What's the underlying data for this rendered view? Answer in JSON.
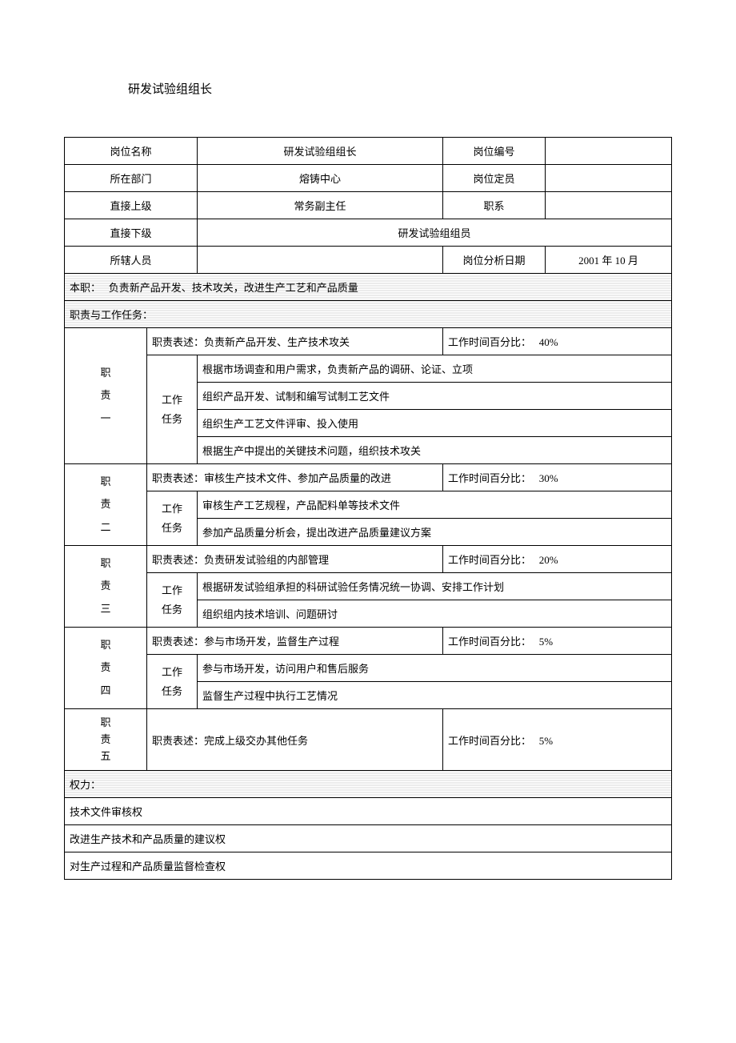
{
  "title": "研发试验组组长",
  "header": {
    "labels": {
      "position_name": "岗位名称",
      "position_code": "岗位编号",
      "department": "所在部门",
      "headcount": "岗位定员",
      "supervisor": "直接上级",
      "job_family": "职系",
      "subordinate": "直接下级",
      "staff": "所辖人员",
      "analysis_date": "岗位分析日期"
    },
    "values": {
      "position_name": "研发试验组组长",
      "position_code": "",
      "department": "熔铸中心",
      "headcount": "",
      "supervisor": "常务副主任",
      "job_family": "",
      "subordinate": "研发试验组组员",
      "staff": "",
      "analysis_date": "2001 年 10 月"
    }
  },
  "main_duty": {
    "label": "本职：",
    "text": "负责新产品开发、技术攻关，改进生产工艺和产品质量"
  },
  "duties_header": "职责与工作任务：",
  "task_label": "工作任务",
  "time_label": "工作时间百分比：",
  "duties": [
    {
      "id_label": "职责一",
      "desc": "职责表述：负责新产品开发、生产技术攻关",
      "time": "40%",
      "tasks": [
        "根据市场调查和用户需求，负责新产品的调研、论证、立项",
        "组织产品开发、试制和编写试制工艺文件",
        "组织生产工艺文件评审、投入使用",
        "根据生产中提出的关键技术问题，组织技术攻关"
      ]
    },
    {
      "id_label": "职责二",
      "desc": "职责表述：审核生产技术文件、参加产品质量的改进",
      "time": "30%",
      "tasks": [
        "审核生产工艺规程，产品配料单等技术文件",
        "参加产品质量分析会，提出改进产品质量建议方案"
      ]
    },
    {
      "id_label": "职责三",
      "desc": "职责表述：负责研发试验组的内部管理",
      "time": "20%",
      "tasks": [
        "根据研发试验组承担的科研试验任务情况统一协调、安排工作计划",
        "组织组内技术培训、问题研讨"
      ]
    },
    {
      "id_label": "职责四",
      "desc": "职责表述：参与市场开发，监督生产过程",
      "time": "5%",
      "tasks": [
        "参与市场开发，访问用户和售后服务",
        "监督生产过程中执行工艺情况"
      ]
    },
    {
      "id_label": "职责五",
      "desc": "职责表述：完成上级交办其他任务",
      "time": "5%",
      "tasks": []
    }
  ],
  "authority": {
    "header": "权力：",
    "items": [
      "技术文件审核权",
      "改进生产技术和产品质量的建议权",
      "对生产过程和产品质量监督检查权"
    ]
  }
}
